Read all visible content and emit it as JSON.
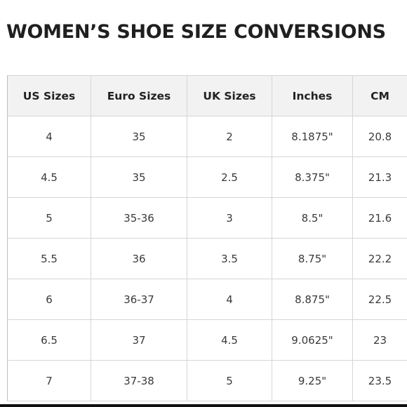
{
  "title": "WOMEN’S SHOE SIZE CONVERSIONS",
  "table": {
    "headers": [
      "US Sizes",
      "Euro Sizes",
      "UK Sizes",
      "Inches",
      "CM"
    ],
    "rows": [
      [
        "4",
        "35",
        "2",
        "8.1875\"",
        "20.8"
      ],
      [
        "4.5",
        "35",
        "2.5",
        "8.375\"",
        "21.3"
      ],
      [
        "5",
        "35-36",
        "3",
        "8.5\"",
        "21.6"
      ],
      [
        "5.5",
        "36",
        "3.5",
        "8.75\"",
        "22.2"
      ],
      [
        "6",
        "36-37",
        "4",
        "8.875\"",
        "22.5"
      ],
      [
        "6.5",
        "37",
        "4.5",
        "9.0625\"",
        "23"
      ],
      [
        "7",
        "37-38",
        "5",
        "9.25\"",
        "23.5"
      ]
    ]
  }
}
